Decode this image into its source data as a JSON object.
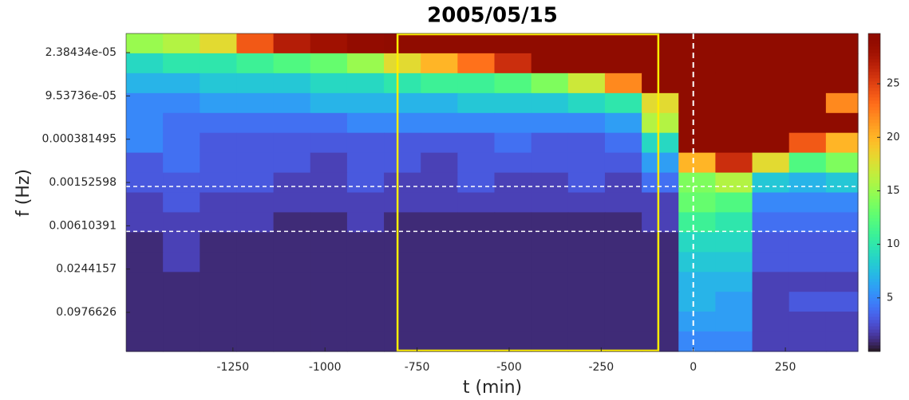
{
  "chart_data": {
    "type": "heatmap",
    "title": "2005/05/15",
    "x_label": "t (min)",
    "y_label": "f (Hz)",
    "xlim": [
      -1540,
      447
    ],
    "xticks": [
      -1250,
      -1000,
      -750,
      -500,
      -250,
      0,
      250
    ],
    "ylim": [
      1.29e-05,
      0.341
    ],
    "y_log": true,
    "y_reversed": true,
    "yticks": [
      {
        "value": 2.38434e-05,
        "label": "2.38434e-05"
      },
      {
        "value": 9.53736e-05,
        "label": "9.53736e-05"
      },
      0.000381495,
      0.00152598,
      0.00610391,
      0.0244157,
      0.0976626
    ],
    "colormap": "turbo",
    "clim": [
      0,
      29.7
    ],
    "cticks": [
      5,
      10,
      15,
      20,
      25
    ],
    "x": [
      -1490,
      -1390,
      -1290,
      -1190,
      -1090,
      -990,
      -890,
      -790,
      -690,
      -590,
      -490,
      -390,
      -290,
      -190,
      -90,
      10,
      110,
      210,
      310,
      410
    ],
    "y": [
      1.77e-05,
      3.35e-05,
      6.33e-05,
      0.00012,
      0.000226,
      0.000427,
      0.000807,
      0.00153,
      0.00288,
      0.00545,
      0.0103,
      0.0195,
      0.0368,
      0.0695,
      0.131,
      0.248
    ],
    "z": [
      [
        15,
        16,
        18,
        24,
        27,
        28,
        29,
        29.7,
        29.7,
        29.7,
        29.7,
        29.7,
        29.7,
        29.7,
        29.7,
        29.7,
        29.7,
        29.7,
        29.7,
        29.7
      ],
      [
        9,
        10,
        10,
        11,
        12,
        13,
        15,
        18,
        20,
        23,
        26,
        29.7,
        29.7,
        29.7,
        29.7,
        29.7,
        29.7,
        29.7,
        29.7,
        29.7
      ],
      [
        7,
        7,
        8,
        8,
        8,
        9,
        9,
        10,
        11,
        11,
        12,
        14,
        17,
        22,
        29.7,
        29.7,
        29.7,
        29.7,
        29.7,
        29.7
      ],
      [
        5,
        5,
        6,
        6,
        6,
        7,
        7,
        7,
        7,
        8,
        8,
        8,
        9,
        10,
        18,
        29.7,
        29.7,
        29.7,
        29.7,
        22
      ],
      [
        5,
        4,
        4,
        4,
        4,
        4,
        5,
        5,
        5,
        5,
        5,
        5,
        5,
        6,
        16,
        29.7,
        29.7,
        29.7,
        29.7,
        29.7
      ],
      [
        5,
        4,
        3,
        3,
        3,
        3,
        3,
        3,
        3,
        3,
        4,
        3,
        3,
        4,
        9,
        29.7,
        29.7,
        29.7,
        24,
        20
      ],
      [
        3,
        4,
        3,
        3,
        3,
        2,
        3,
        3,
        2,
        3,
        3,
        3,
        3,
        3,
        6,
        20,
        26,
        18,
        12,
        14
      ],
      [
        3,
        3,
        3,
        3,
        2,
        2,
        3,
        2,
        2,
        3,
        2,
        2,
        3,
        2,
        4,
        14,
        16,
        8,
        7,
        8
      ],
      [
        2,
        3,
        2,
        2,
        2,
        2,
        2,
        2,
        2,
        2,
        2,
        2,
        2,
        2,
        2,
        13,
        12,
        5,
        5,
        5
      ],
      [
        2,
        2,
        2,
        2,
        1,
        1,
        2,
        1,
        1,
        1,
        1,
        1,
        1,
        1,
        2,
        11,
        10,
        4,
        4,
        4
      ],
      [
        1,
        2,
        1,
        1,
        1,
        1,
        1,
        1,
        1,
        1,
        1,
        1,
        1,
        1,
        1,
        9,
        9,
        3,
        3,
        3
      ],
      [
        1,
        2,
        1,
        1,
        1,
        1,
        1,
        1,
        1,
        1,
        1,
        1,
        1,
        1,
        1,
        8,
        8,
        3,
        3,
        3
      ],
      [
        1,
        1,
        1,
        1,
        1,
        1,
        1,
        1,
        1,
        1,
        1,
        1,
        1,
        1,
        1,
        7,
        7,
        2,
        2,
        2
      ],
      [
        1,
        1,
        1,
        1,
        1,
        1,
        1,
        1,
        1,
        1,
        1,
        1,
        1,
        1,
        1,
        7,
        6,
        2,
        3,
        3
      ],
      [
        1,
        1,
        1,
        1,
        1,
        1,
        1,
        1,
        1,
        1,
        1,
        1,
        1,
        1,
        1,
        6,
        6,
        2,
        2,
        2
      ],
      [
        1,
        1,
        1,
        1,
        1,
        1,
        1,
        1,
        1,
        1,
        1,
        1,
        1,
        1,
        1,
        5,
        5,
        2,
        2,
        2
      ]
    ],
    "box_x": [
      -803,
      -95
    ],
    "box_color": "#ffee00",
    "vlines": [
      0
    ],
    "hlines": [
      0.00173,
      0.0073
    ],
    "line_color": "#ffffff"
  }
}
